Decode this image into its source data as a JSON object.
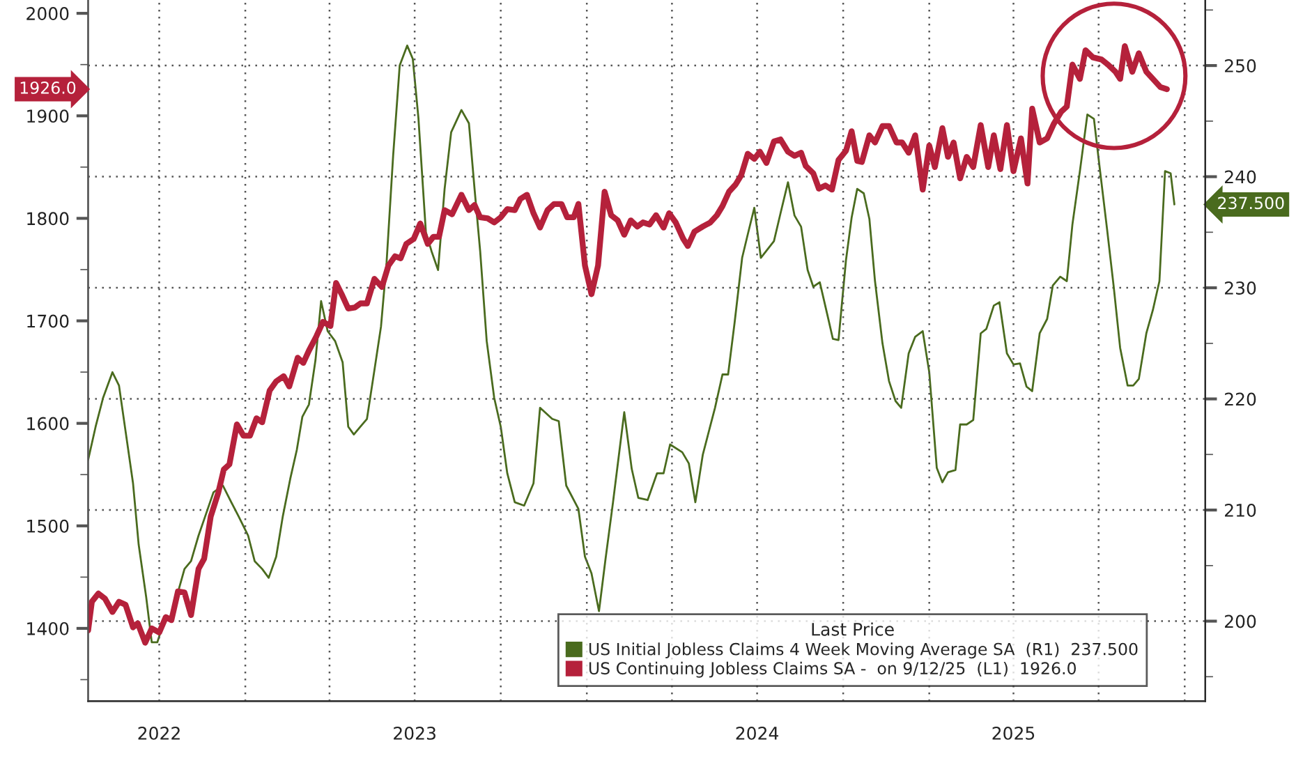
{
  "chart_data": {
    "type": "line",
    "series": [
      {
        "name": "US Initial Jobless Claims 4 Week Moving Average SA  (R1)  237.500",
        "color": "#4a6b1e",
        "axis": "y2",
        "x": [
          "2022-07-17",
          "2022-07-25",
          "2022-08-02",
          "2022-08-12",
          "2022-08-19",
          "2022-08-26",
          "2022-09-03",
          "2022-09-09",
          "2022-09-17",
          "2022-09-23",
          "2022-09-29",
          "2022-10-06",
          "2022-10-14",
          "2022-10-21",
          "2022-10-28",
          "2022-11-04",
          "2022-11-12",
          "2022-11-19",
          "2022-11-28",
          "2022-12-08",
          "2022-12-17",
          "2022-12-25",
          "2023-01-04",
          "2023-01-11",
          "2023-01-19",
          "2023-01-26",
          "2023-02-03",
          "2023-02-10",
          "2023-02-18",
          "2023-02-25",
          "2023-03-03",
          "2023-03-10",
          "2023-03-17",
          "2023-03-23",
          "2023-03-30",
          "2023-04-07",
          "2023-04-15",
          "2023-04-21",
          "2023-04-27",
          "2023-05-04",
          "2023-05-11",
          "2023-05-19",
          "2023-05-26",
          "2023-06-01",
          "2023-06-08",
          "2023-06-15",
          "2023-06-23",
          "2023-06-29",
          "2023-07-05",
          "2023-07-13",
          "2023-07-19",
          "2023-07-26",
          "2023-08-02",
          "2023-08-09",
          "2023-08-20",
          "2023-08-28",
          "2023-09-03",
          "2023-09-09",
          "2023-09-16",
          "2023-09-24",
          "2023-10-01",
          "2023-10-08",
          "2023-10-16",
          "2023-10-26",
          "2023-11-05",
          "2023-11-12",
          "2023-11-25",
          "2023-12-02",
          "2023-12-10",
          "2023-12-23",
          "2023-12-30",
          "2024-01-06",
          "2024-01-14",
          "2024-01-21",
          "2024-01-29",
          "2024-02-10",
          "2024-02-18",
          "2024-02-25",
          "2024-03-06",
          "2024-03-16",
          "2024-03-23",
          "2024-03-30",
          "2024-04-12",
          "2024-04-19",
          "2024-04-26",
          "2024-05-04",
          "2024-05-17",
          "2024-05-25",
          "2024-05-31",
          "2024-06-07",
          "2024-06-15",
          "2024-06-21",
          "2024-06-28",
          "2024-07-05",
          "2024-07-19",
          "2024-07-26",
          "2024-08-03",
          "2024-08-10",
          "2024-08-17",
          "2024-08-24",
          "2024-08-30",
          "2024-09-06",
          "2024-09-14",
          "2024-09-20",
          "2024-09-26",
          "2024-10-04",
          "2024-10-10",
          "2024-10-16",
          "2024-10-23",
          "2024-10-29",
          "2024-11-04",
          "2024-11-12",
          "2024-11-19",
          "2024-11-26",
          "2024-12-02",
          "2024-12-10",
          "2024-12-17",
          "2024-12-25",
          "2025-01-01",
          "2025-01-09",
          "2025-01-15",
          "2025-01-21",
          "2025-01-29",
          "2025-02-03",
          "2025-02-10",
          "2025-02-17",
          "2025-02-25",
          "2025-03-03",
          "2025-03-11",
          "2025-03-17",
          "2025-03-25",
          "2025-04-01",
          "2025-04-08",
          "2025-04-15",
          "2025-04-21",
          "2025-04-29",
          "2025-05-07",
          "2025-05-13",
          "2025-05-21",
          "2025-05-28",
          "2025-06-03",
          "2025-06-11",
          "2025-06-19",
          "2025-06-26",
          "2025-07-02",
          "2025-07-10",
          "2025-07-17",
          "2025-07-24",
          "2025-08-01",
          "2025-08-07",
          "2025-08-13",
          "2025-08-21",
          "2025-08-28",
          "2025-09-04",
          "2025-09-10",
          "2025-09-16",
          "2025-09-20"
        ],
        "values": [
          214.5,
          217.5,
          220.1,
          222.4,
          221.2,
          217.1,
          212.4,
          206.9,
          202.2,
          198.1,
          198.1,
          200.0,
          200.5,
          202.6,
          204.7,
          205.4,
          207.7,
          209.4,
          211.6,
          212.2,
          210.7,
          209.4,
          207.7,
          205.4,
          204.7,
          203.9,
          205.8,
          209.4,
          212.8,
          215.4,
          218.4,
          219.5,
          223.5,
          228.8,
          226.1,
          225.2,
          223.3,
          217.5,
          216.8,
          217.5,
          218.2,
          222.6,
          226.5,
          232.3,
          241.9,
          250.0,
          251.8,
          250.6,
          245.3,
          235.0,
          233.3,
          231.6,
          238.9,
          244.0,
          246.0,
          244.8,
          238.9,
          233.3,
          225.2,
          220.1,
          217.5,
          213.3,
          210.7,
          210.4,
          212.4,
          219.2,
          218.2,
          218.0,
          212.2,
          210.1,
          205.8,
          204.3,
          200.9,
          205.6,
          210.7,
          218.8,
          213.7,
          211.1,
          210.9,
          213.3,
          213.3,
          215.9,
          215.2,
          214.2,
          210.7,
          215.0,
          219.2,
          222.2,
          222.2,
          226.9,
          232.7,
          234.8,
          237.2,
          232.7,
          234.2,
          236.7,
          239.5,
          236.5,
          235.5,
          231.6,
          230.1,
          230.5,
          227.6,
          225.4,
          225.3,
          232.5,
          236.3,
          238.9,
          238.5,
          236.2,
          230.6,
          225.0,
          221.6,
          219.8,
          219.2,
          224.1,
          225.6,
          226.1,
          222.4,
          213.8,
          212.5,
          213.4,
          213.6,
          217.7,
          217.7,
          218.1,
          225.9,
          226.3,
          228.4,
          228.7,
          224.1,
          223.1,
          223.2,
          221.1,
          220.7,
          225.9,
          227.2,
          230.2,
          231.0,
          230.6,
          235.7,
          240.5,
          245.6,
          245.2,
          240.9,
          235.3,
          230.2,
          224.6,
          221.2,
          221.2,
          221.8,
          225.9,
          228.0,
          230.6,
          240.5,
          240.3,
          237.5
        ]
      },
      {
        "name": "US Continuing Jobless Claims SA -  on 9/12/25  (L1)  1926.0",
        "color": "#b5213b",
        "x": [
          "2022-07-17",
          "2022-07-21",
          "2022-07-28",
          "2022-08-04",
          "2022-08-12",
          "2022-08-19",
          "2022-08-26",
          "2022-09-03",
          "2022-09-08",
          "2022-09-16",
          "2022-09-23",
          "2022-10-01",
          "2022-10-08",
          "2022-10-14",
          "2022-10-21",
          "2022-10-28",
          "2022-11-04",
          "2022-11-12",
          "2022-11-18",
          "2022-11-25",
          "2022-12-03",
          "2022-12-09",
          "2022-12-15",
          "2022-12-23",
          "2022-12-30",
          "2023-01-06",
          "2023-01-13",
          "2023-01-19",
          "2023-01-27",
          "2023-02-03",
          "2023-02-11",
          "2023-02-17",
          "2023-02-26",
          "2023-03-04",
          "2023-03-10",
          "2023-03-18",
          "2023-03-25",
          "2023-04-02",
          "2023-04-08",
          "2023-04-14",
          "2023-04-21",
          "2023-04-28",
          "2023-05-04",
          "2023-05-11",
          "2023-05-19",
          "2023-05-27",
          "2023-06-03",
          "2023-06-10",
          "2023-06-16",
          "2023-06-22",
          "2023-06-30",
          "2023-07-07",
          "2023-07-15",
          "2023-07-21",
          "2023-07-27",
          "2023-08-02",
          "2023-08-10",
          "2023-08-20",
          "2023-08-28",
          "2023-09-03",
          "2023-09-09",
          "2023-09-17",
          "2023-09-24",
          "2023-10-01",
          "2023-10-08",
          "2023-10-16",
          "2023-10-22",
          "2023-10-29",
          "2023-11-05",
          "2023-11-12",
          "2023-11-20",
          "2023-11-27",
          "2023-12-05",
          "2023-12-11",
          "2023-12-18",
          "2023-12-23",
          "2023-12-30",
          "2024-01-06",
          "2024-01-13",
          "2024-01-20",
          "2024-01-27",
          "2024-02-03",
          "2024-02-10",
          "2024-02-17",
          "2024-02-24",
          "2024-03-01",
          "2024-03-08",
          "2024-03-15",
          "2024-03-23",
          "2024-03-29",
          "2024-04-05",
          "2024-04-13",
          "2024-04-18",
          "2024-04-25",
          "2024-05-04",
          "2024-05-12",
          "2024-05-19",
          "2024-05-25",
          "2024-06-01",
          "2024-06-08",
          "2024-06-14",
          "2024-06-21",
          "2024-06-28",
          "2024-07-04",
          "2024-07-11",
          "2024-07-19",
          "2024-07-26",
          "2024-08-03",
          "2024-08-10",
          "2024-08-17",
          "2024-08-22",
          "2024-08-30",
          "2024-09-05",
          "2024-09-12",
          "2024-09-19",
          "2024-09-26",
          "2024-10-04",
          "2024-10-10",
          "2024-10-16",
          "2024-10-21",
          "2024-10-29",
          "2024-11-04",
          "2024-11-12",
          "2024-11-19",
          "2024-11-27",
          "2024-12-03",
          "2024-12-10",
          "2024-12-17",
          "2024-12-25",
          "2025-01-01",
          "2025-01-07",
          "2025-01-15",
          "2025-01-21",
          "2025-01-27",
          "2025-02-03",
          "2025-02-10",
          "2025-02-17",
          "2025-02-25",
          "2025-03-05",
          "2025-03-11",
          "2025-03-18",
          "2025-03-25",
          "2025-04-01",
          "2025-04-09",
          "2025-04-16",
          "2025-04-21",
          "2025-04-29",
          "2025-05-07",
          "2025-05-14",
          "2025-05-22",
          "2025-05-28",
          "2025-06-03",
          "2025-06-11",
          "2025-06-17",
          "2025-06-25",
          "2025-07-04",
          "2025-07-11",
          "2025-07-19",
          "2025-07-24",
          "2025-07-29",
          "2025-08-06",
          "2025-08-13",
          "2025-08-21",
          "2025-08-28",
          "2025-09-05",
          "2025-09-12"
        ],
        "values": [
          1398,
          1426,
          1434,
          1429,
          1416,
          1426,
          1423,
          1401,
          1405,
          1386,
          1400,
          1396,
          1411,
          1408,
          1436,
          1435,
          1413,
          1458,
          1468,
          1509,
          1532,
          1555,
          1560,
          1599,
          1588,
          1588,
          1605,
          1601,
          1632,
          1641,
          1646,
          1636,
          1664,
          1659,
          1671,
          1685,
          1699,
          1695,
          1737,
          1726,
          1712,
          1713,
          1717,
          1717,
          1741,
          1733,
          1754,
          1763,
          1761,
          1775,
          1780,
          1795,
          1775,
          1782,
          1782,
          1808,
          1804,
          1823,
          1808,
          1813,
          1801,
          1800,
          1796,
          1801,
          1809,
          1808,
          1819,
          1823,
          1805,
          1791,
          1808,
          1814,
          1814,
          1801,
          1801,
          1814,
          1754,
          1726,
          1754,
          1826,
          1803,
          1798,
          1784,
          1798,
          1792,
          1796,
          1794,
          1803,
          1791,
          1805,
          1796,
          1780,
          1773,
          1787,
          1792,
          1796,
          1803,
          1812,
          1826,
          1833,
          1842,
          1863,
          1858,
          1865,
          1854,
          1875,
          1877,
          1865,
          1861,
          1864,
          1851,
          1844,
          1829,
          1832,
          1828,
          1857,
          1866,
          1885,
          1856,
          1855,
          1881,
          1874,
          1890,
          1890,
          1874,
          1874,
          1864,
          1881,
          1828,
          1871,
          1850,
          1888,
          1860,
          1874,
          1839,
          1860,
          1850,
          1891,
          1850,
          1881,
          1848,
          1891,
          1846,
          1878,
          1834,
          1907,
          1874,
          1878,
          1892,
          1904,
          1909,
          1950,
          1936,
          1964,
          1957,
          1955,
          1950,
          1943,
          1936,
          1968,
          1943,
          1961,
          1943,
          1936,
          1928,
          1926
        ]
      }
    ],
    "xlim": [
      "2022-07-17",
      "2025-10-23"
    ],
    "xticks": [
      {
        "value": "2022-10-01",
        "label": "2022"
      },
      {
        "value": "2023-01-01",
        "label": null
      },
      {
        "value": "2023-04-01",
        "label": null
      },
      {
        "value": "2023-07-01",
        "label": "2023"
      },
      {
        "value": "2023-10-01",
        "label": null
      },
      {
        "value": "2024-01-01",
        "label": null
      },
      {
        "value": "2024-04-01",
        "label": null
      },
      {
        "value": "2024-07-01",
        "label": "2024"
      },
      {
        "value": "2024-10-01",
        "label": null
      },
      {
        "value": "2025-01-01",
        "label": null
      },
      {
        "value": "2025-04-01",
        "label": "2025"
      },
      {
        "value": "2025-07-01",
        "label": null
      },
      {
        "value": "2025-10-01",
        "label": null
      }
    ],
    "ylim": [
      1329,
      2013
    ],
    "yticks": [
      {
        "value": 1350,
        "label": null
      },
      1400,
      {
        "value": 1450,
        "label": null
      },
      1500,
      {
        "value": 1550,
        "label": null
      },
      1600,
      {
        "value": 1650,
        "label": null
      },
      1700,
      {
        "value": 1750,
        "label": null
      },
      1800,
      {
        "value": 1850,
        "label": null
      },
      1900,
      {
        "value": 1950,
        "label": null
      },
      2000
    ],
    "y2lim": [
      192.8,
      255.9
    ],
    "y2ticks": [
      {
        "value": 195,
        "label": null
      },
      200,
      {
        "value": 205,
        "label": null
      },
      210,
      {
        "value": 215,
        "label": null
      },
      220,
      {
        "value": 225,
        "label": null
      },
      230,
      {
        "value": 235,
        "label": null
      },
      240,
      {
        "value": 245,
        "label": null
      },
      250,
      {
        "value": 255,
        "label": null
      }
    ],
    "annotations": [
      "237.500",
      "1926.0"
    ],
    "legend_title": "Last Price",
    "legend": "bottom right",
    "grid": true,
    "marker": "none",
    "line_style": "solid"
  }
}
